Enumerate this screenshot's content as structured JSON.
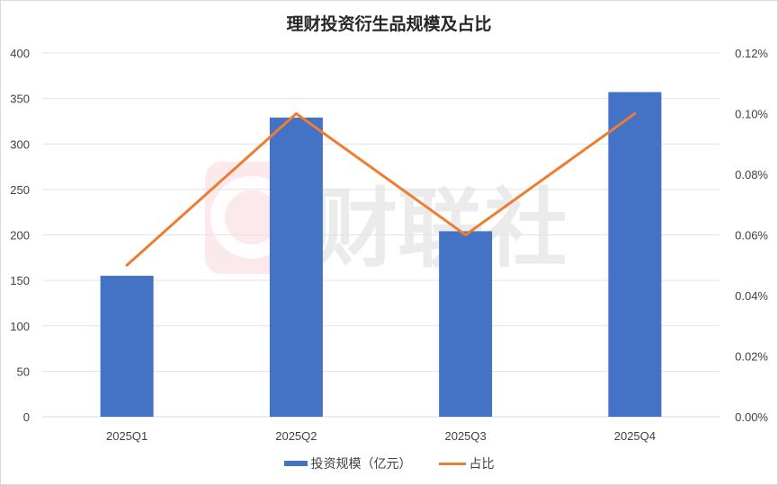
{
  "chart_data": {
    "type": "bar",
    "title": "理财投资衍生品规模及占比",
    "categories": [
      "2025Q1",
      "2025Q2",
      "2025Q3",
      "2025Q4"
    ],
    "series": [
      {
        "name": "投资规模（亿元）",
        "type": "bar",
        "axis": "left",
        "color": "#4472c4",
        "values": [
          155,
          329,
          204,
          357
        ]
      },
      {
        "name": "占比",
        "type": "line",
        "axis": "right",
        "color": "#ed7d31",
        "values": [
          0.05,
          0.1,
          0.06,
          0.1
        ],
        "unit": "%"
      }
    ],
    "xlabel": "",
    "ylabel": "",
    "ylim": [
      0,
      400
    ],
    "y_ticks": [
      "0",
      "50",
      "100",
      "150",
      "200",
      "250",
      "300",
      "350",
      "400"
    ],
    "y2lim": [
      0,
      0.12
    ],
    "y2_ticks": [
      "0.00%",
      "0.02%",
      "0.04%",
      "0.06%",
      "0.08%",
      "0.10%",
      "0.12%"
    ],
    "grid": true,
    "legend_position": "bottom"
  },
  "title": "理财投资衍生品规模及占比",
  "legend": {
    "bar_label": "投资规模（亿元）",
    "line_label": "占比"
  },
  "watermark": "财联社"
}
